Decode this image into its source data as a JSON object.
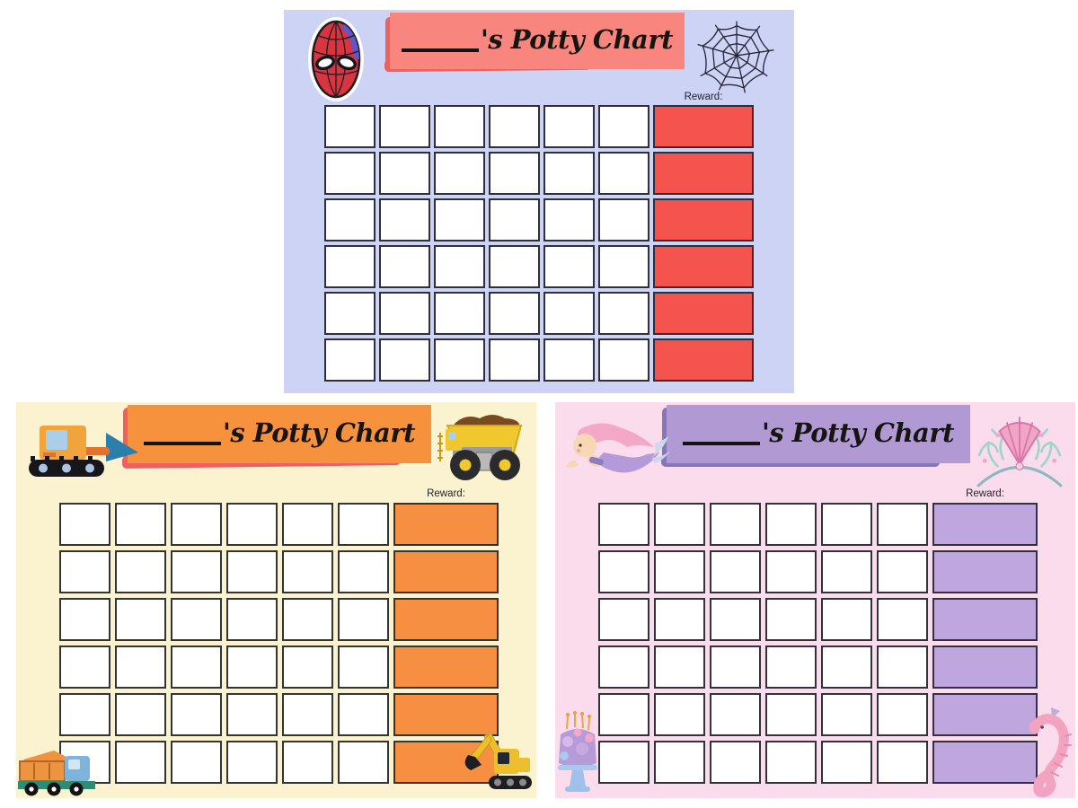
{
  "page": {
    "background": "#ffffff"
  },
  "charts": [
    {
      "name": "spiderman",
      "title_suffix": "'s Potty Chart",
      "reward_label": "Reward:",
      "grid": {
        "rows": 6,
        "data_columns": 6,
        "reward_columns": 1
      },
      "colors": {
        "bg": "#ccd3f4",
        "banner": "#f9867e",
        "accent": "#ef615f",
        "reward": "#f4534e",
        "border": "#2e2e3c"
      },
      "icons": [
        "spiderman-mask-icon",
        "spider-web-icon"
      ]
    },
    {
      "name": "construction",
      "title_suffix": "'s Potty Chart",
      "reward_label": "Reward:",
      "grid": {
        "rows": 6,
        "data_columns": 6,
        "reward_columns": 1
      },
      "colors": {
        "bg": "#fbf2cf",
        "banner": "#f6913d",
        "accent": "#ee5f63",
        "reward": "#f78f42",
        "border": "#35352f"
      },
      "icons": [
        "bulldozer-icon",
        "dump-truck-icon",
        "toy-dump-truck-icon",
        "excavator-icon"
      ]
    },
    {
      "name": "mermaid",
      "title_suffix": "'s Potty Chart",
      "reward_label": "Reward:",
      "grid": {
        "rows": 6,
        "data_columns": 6,
        "reward_columns": 1
      },
      "colors": {
        "bg": "#fadcec",
        "banner": "#b199d4",
        "accent": "#8478ba",
        "reward": "#bfa6de",
        "border": "#35313c"
      },
      "icons": [
        "mermaid-icon",
        "shell-crown-icon",
        "birthday-cake-icon",
        "seahorse-icon"
      ]
    }
  ]
}
